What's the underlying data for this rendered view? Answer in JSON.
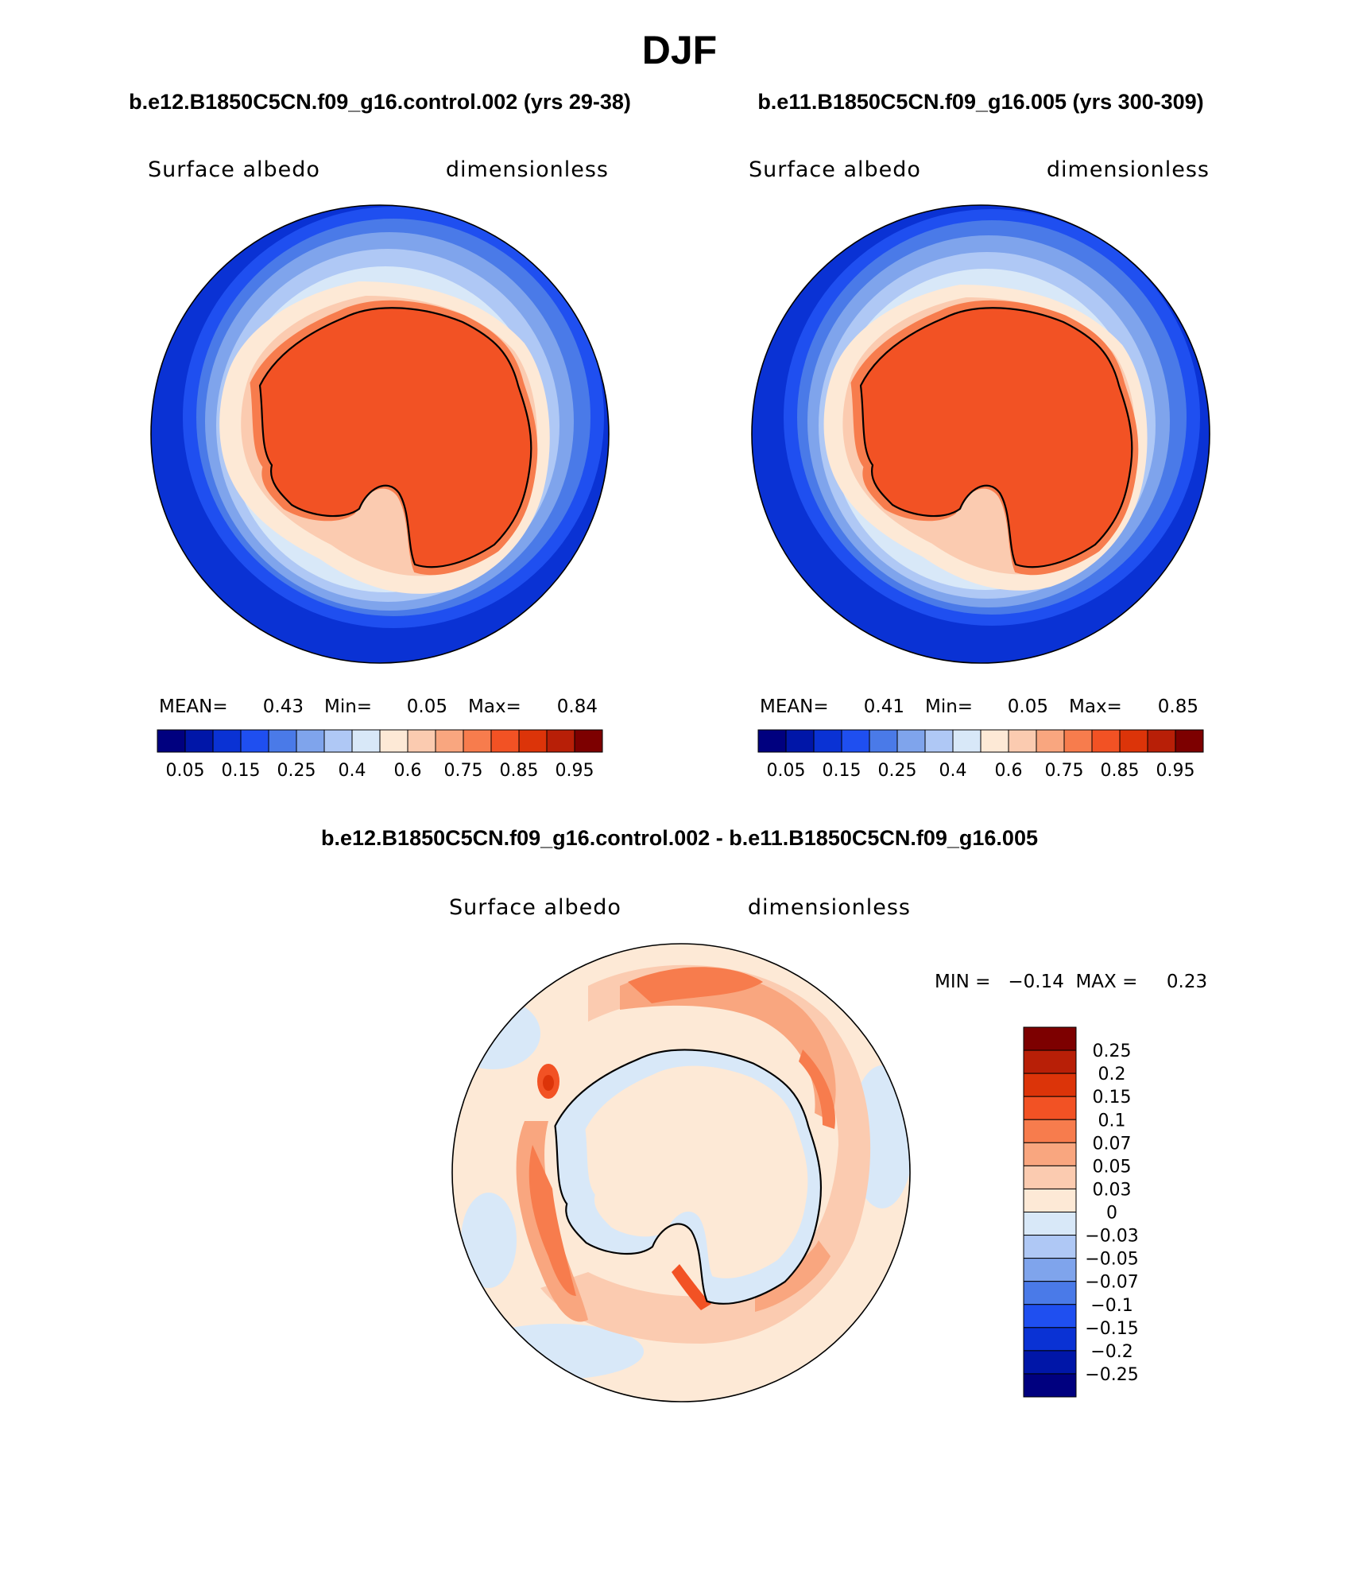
{
  "figure": {
    "season": "DJF",
    "diff_title": "b.e12.B1850C5CN.f09_g16.control.002 - b.e11.B1850C5CN.f09_g16.005"
  },
  "panels": [
    {
      "case_title": "b.e12.B1850C5CN.f09_g16.control.002 (yrs 29-38)",
      "variable": "Surface albedo",
      "units": "dimensionless",
      "mean_label": "MEAN=",
      "mean": "0.43",
      "min_label": "Min=",
      "min": "0.05",
      "max_label": "Max=",
      "max": "0.84"
    },
    {
      "case_title": "b.e11.B1850C5CN.f09_g16.005 (yrs 300-309)",
      "variable": "Surface albedo",
      "units": "dimensionless",
      "mean_label": "MEAN=",
      "mean": "0.41",
      "min_label": "Min=",
      "min": "0.05",
      "max_label": "Max=",
      "max": "0.85"
    }
  ],
  "diff_panel": {
    "variable": "Surface albedo",
    "units": "dimensionless",
    "minmax_text": "MIN =   −0.14  MAX =     0.23"
  },
  "albedo_colorbar": {
    "colors": [
      "#00007f",
      "#0016a8",
      "#0a32d4",
      "#1f4ff0",
      "#4a7ae8",
      "#7fa4ec",
      "#afc8f5",
      "#d8e8f8",
      "#fde9d6",
      "#fbcbb0",
      "#f9a67f",
      "#f77c4d",
      "#f25224",
      "#dc3409",
      "#b81f07",
      "#7d0000"
    ],
    "tick_labels": [
      "0.05",
      "0.15",
      "0.25",
      "0.4",
      "0.6",
      "0.75",
      "0.85",
      "0.95"
    ]
  },
  "diff_colorbar": {
    "colors_top_to_bottom": [
      "#7d0000",
      "#b81f07",
      "#dc3409",
      "#f25224",
      "#f77c4d",
      "#f9a67f",
      "#fbcbb0",
      "#fde9d6",
      "#d8e8f8",
      "#afc8f5",
      "#7fa4ec",
      "#4a7ae8",
      "#1f4ff0",
      "#0a32d4",
      "#0016a8",
      "#00007f"
    ],
    "tick_labels": [
      "0.25",
      "0.2",
      "0.15",
      "0.1",
      "0.07",
      "0.05",
      "0.03",
      "0",
      "−0.03",
      "−0.05",
      "−0.07",
      "−0.1",
      "−0.15",
      "−0.2",
      "−0.25"
    ]
  },
  "map_colors": {
    "ocean_deep": "#0a32d4",
    "ocean_mid": "#1f4ff0",
    "ocean_light": "#4a7ae8",
    "ice_edge": "#7fa4ec",
    "ice_pale": "#afc8f5",
    "ice_white": "#d8e8f8",
    "ice_cream": "#fde9d6",
    "shelf": "#fbcbb0",
    "coast_band": "#f77c4d",
    "land": "#f25224",
    "diff_bg": "#fde9d6",
    "diff_neg": "#d8e8f8",
    "diff_pos1": "#fbcbb0",
    "diff_pos2": "#f9a67f",
    "diff_pos3": "#f77c4d",
    "diff_pos4": "#f25224",
    "diff_pos5": "#dc3409"
  }
}
